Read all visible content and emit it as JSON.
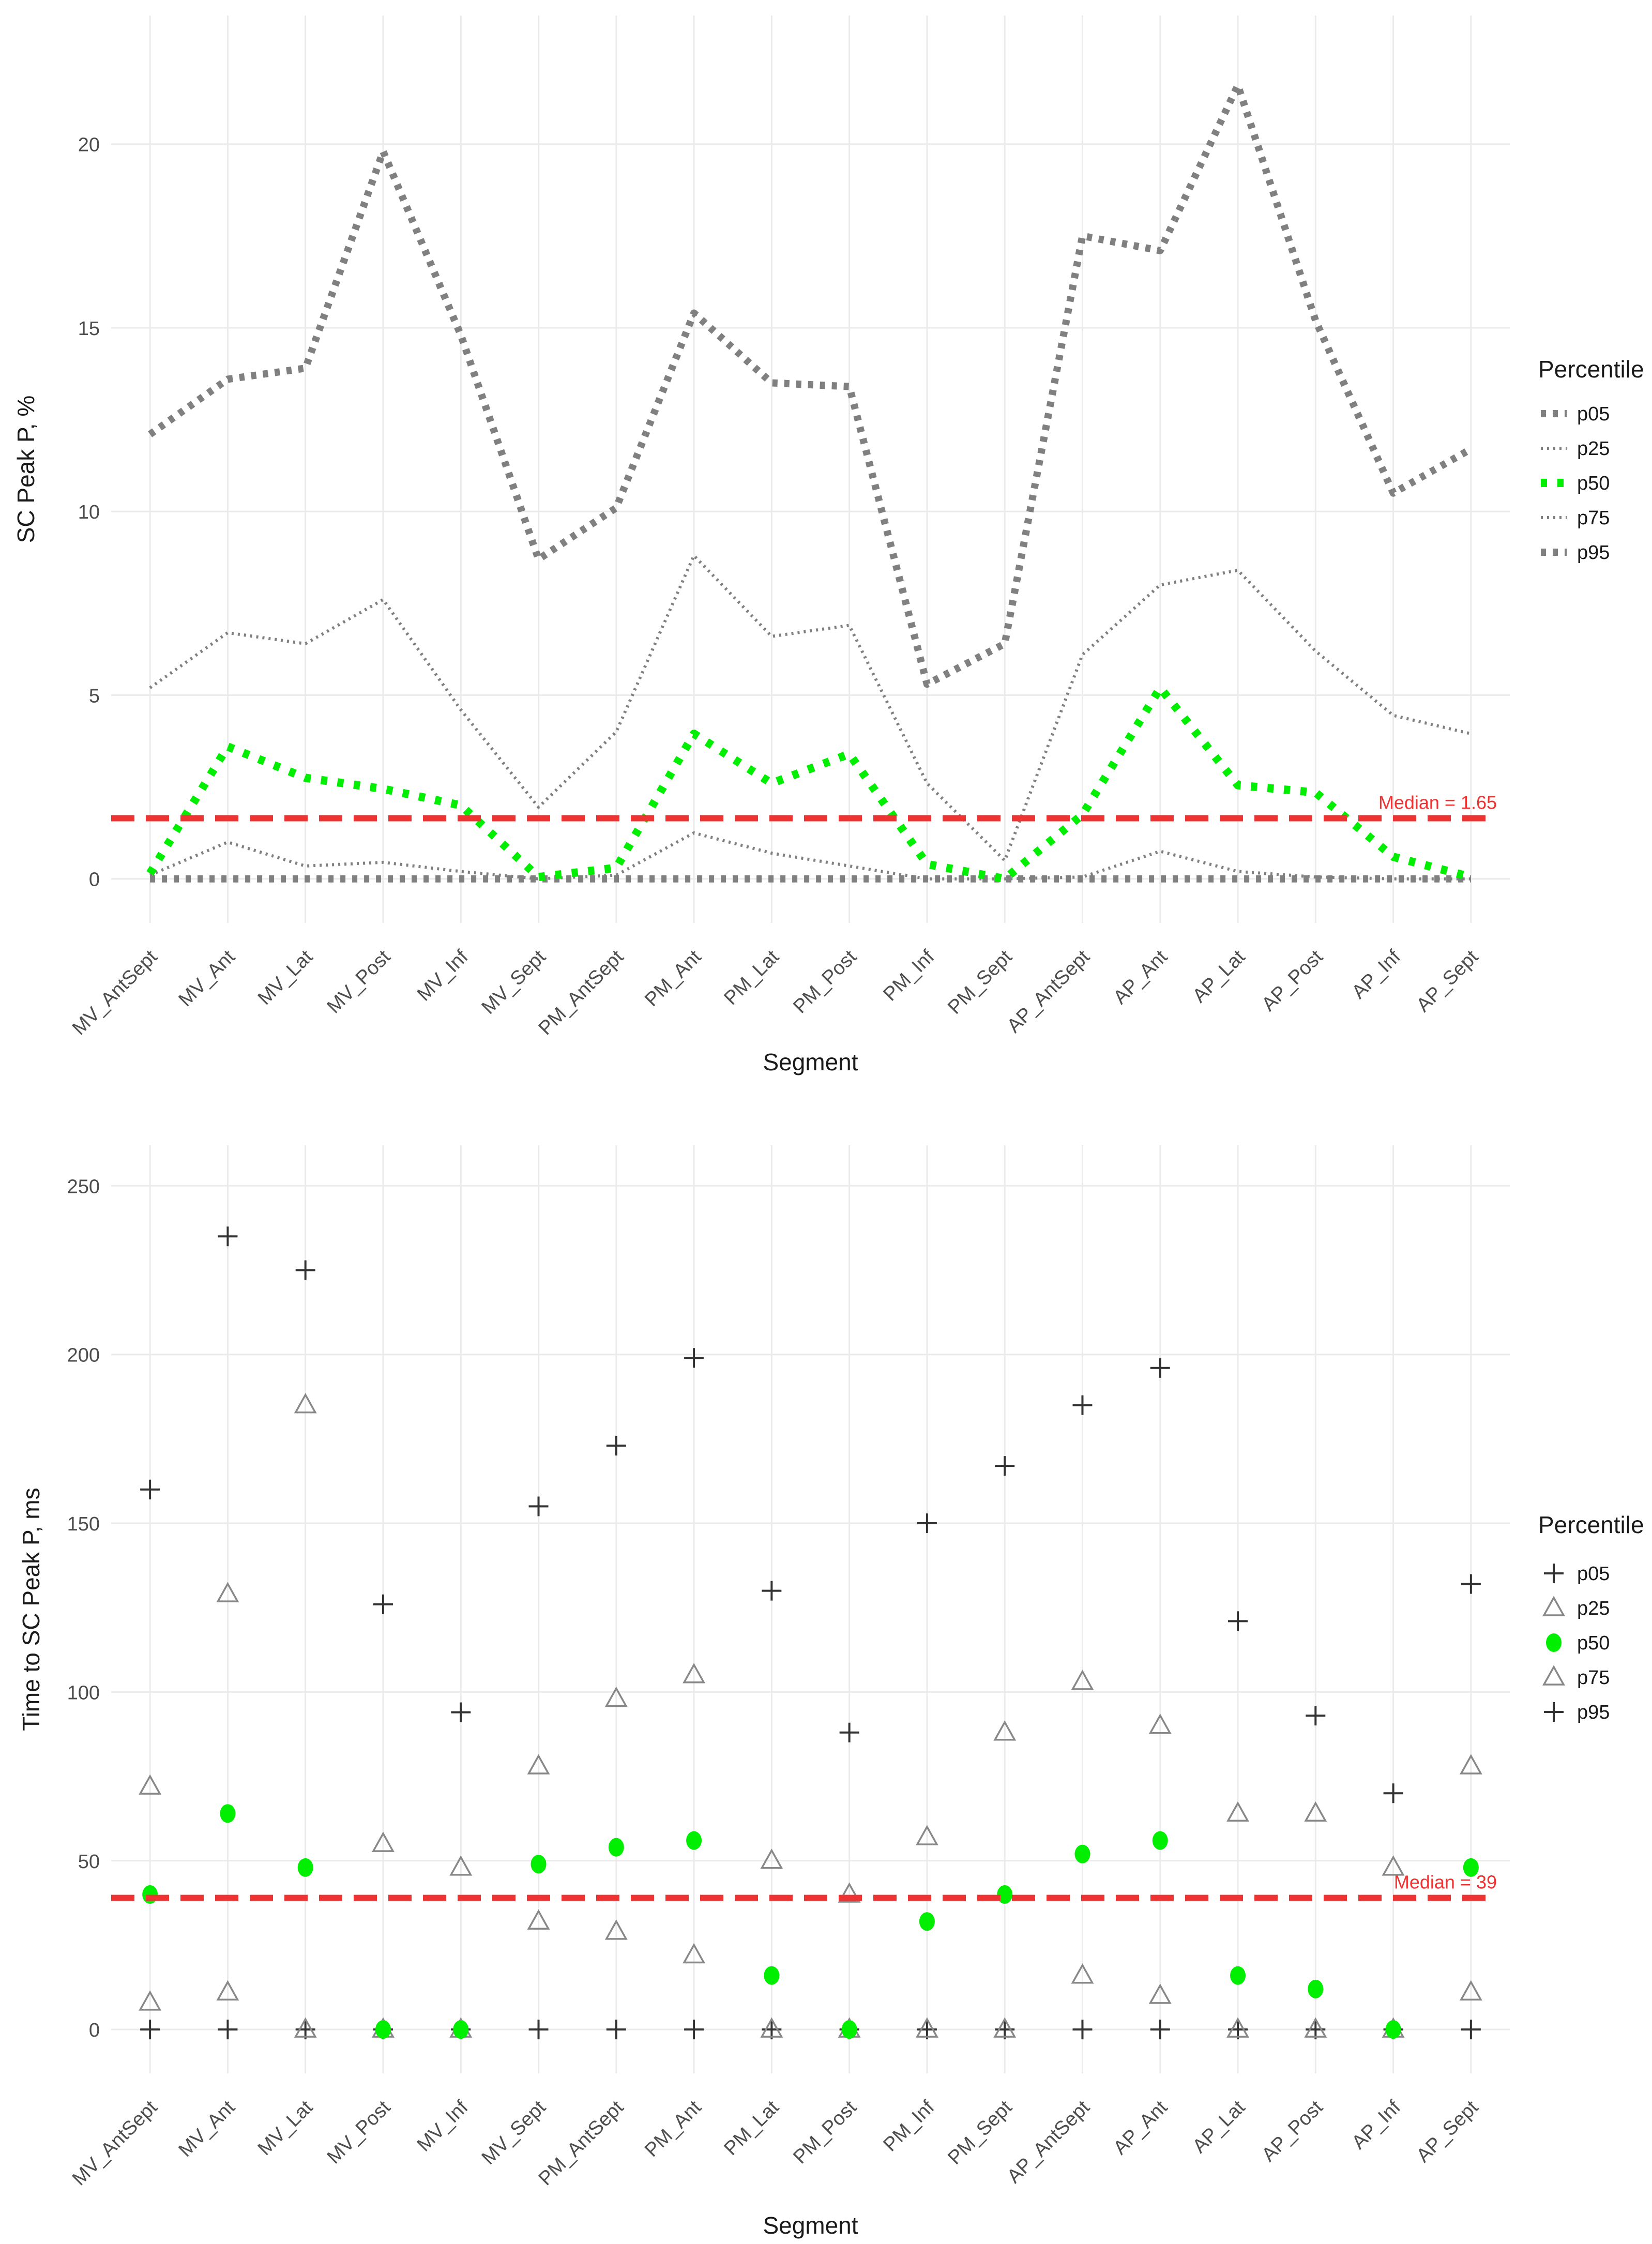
{
  "chart_data": [
    {
      "type": "line",
      "xlabel": "Segment",
      "ylabel": "SC Peak P, %",
      "ylim": [
        -1.2,
        23.5
      ],
      "yticks": [
        0,
        5,
        10,
        15,
        20
      ],
      "grid": true,
      "legend_title": "Percentile",
      "legend_position": "right",
      "categories": [
        "MV_AntSept",
        "MV_Ant",
        "MV_Lat",
        "MV_Post",
        "MV_Inf",
        "MV_Sept",
        "PM_AntSept",
        "PM_Ant",
        "PM_Lat",
        "PM_Post",
        "PM_Inf",
        "PM_Sept",
        "AP_AntSept",
        "AP_Ant",
        "AP_Lat",
        "AP_Post",
        "AP_Inf",
        "AP_Sept"
      ],
      "series": [
        {
          "name": "p05",
          "color": "#808080",
          "style": "dashed-thick",
          "values": [
            0,
            0,
            0,
            0,
            0,
            0,
            0,
            0,
            0,
            0,
            0,
            0,
            0,
            0,
            0,
            0,
            0,
            0
          ]
        },
        {
          "name": "p25",
          "color": "#808080",
          "style": "dotted-thin",
          "values": [
            0.1,
            1.0,
            0.35,
            0.45,
            0.2,
            0,
            0.1,
            1.25,
            0.7,
            0.35,
            0,
            0,
            0.05,
            0.75,
            0.2,
            0.05,
            0,
            0
          ]
        },
        {
          "name": "p50",
          "color": "#00ee00",
          "style": "dotted-thick",
          "values": [
            0.15,
            3.6,
            2.75,
            2.45,
            2.0,
            0.05,
            0.3,
            3.95,
            2.6,
            3.4,
            0.4,
            0,
            1.75,
            5.2,
            2.55,
            2.35,
            0.6,
            0.05
          ]
        },
        {
          "name": "p75",
          "color": "#808080",
          "style": "dotted-thin",
          "values": [
            5.2,
            6.7,
            6.4,
            7.6,
            4.6,
            1.95,
            4.0,
            8.8,
            6.6,
            6.9,
            2.6,
            0.5,
            6.1,
            8.0,
            8.4,
            6.2,
            4.45,
            3.95
          ]
        },
        {
          "name": "p95",
          "color": "#808080",
          "style": "dashed-thick",
          "values": [
            12.1,
            13.6,
            13.9,
            19.8,
            14.8,
            8.7,
            10.1,
            15.4,
            13.5,
            13.4,
            5.3,
            6.4,
            17.5,
            17.1,
            21.6,
            15.2,
            10.5,
            11.7
          ]
        }
      ],
      "reference_line": {
        "value": 1.65,
        "label": "Median = 1.65",
        "color": "#ee3333"
      }
    },
    {
      "type": "scatter",
      "xlabel": "Segment",
      "ylabel": "Time to SC Peak P, ms",
      "ylim": [
        -13,
        262
      ],
      "yticks": [
        0,
        50,
        100,
        150,
        200,
        250
      ],
      "grid": true,
      "legend_title": "Percentile",
      "legend_position": "right",
      "categories": [
        "MV_AntSept",
        "MV_Ant",
        "MV_Lat",
        "MV_Post",
        "MV_Inf",
        "MV_Sept",
        "PM_AntSept",
        "PM_Ant",
        "PM_Lat",
        "PM_Post",
        "PM_Inf",
        "PM_Sept",
        "AP_AntSept",
        "AP_Ant",
        "AP_Lat",
        "AP_Post",
        "AP_Inf",
        "AP_Sept"
      ],
      "series": [
        {
          "name": "p05",
          "marker": "plus",
          "color": "#333333",
          "values": [
            0,
            0,
            0,
            0,
            0,
            0,
            0,
            0,
            0,
            0,
            0,
            0,
            0,
            0,
            0,
            0,
            0,
            0
          ]
        },
        {
          "name": "p25",
          "marker": "triangle",
          "color": "#888888",
          "values": [
            8,
            11,
            0,
            0,
            0,
            32,
            29,
            22,
            0,
            0,
            0,
            0,
            16,
            10,
            0,
            0,
            0,
            11
          ]
        },
        {
          "name": "p50",
          "marker": "circle",
          "color": "#00ee00",
          "values": [
            40,
            64,
            48,
            0,
            0,
            49,
            54,
            56,
            16,
            0,
            32,
            40,
            52,
            56,
            16,
            12,
            0,
            48
          ]
        },
        {
          "name": "p75",
          "marker": "triangle",
          "color": "#888888",
          "values": [
            72,
            129,
            185,
            55,
            48,
            78,
            98,
            105,
            50,
            40,
            57,
            88,
            103,
            90,
            64,
            64,
            48,
            78
          ]
        },
        {
          "name": "p95",
          "marker": "plus",
          "color": "#333333",
          "values": [
            160,
            235,
            225,
            126,
            94,
            155,
            173,
            199,
            130,
            88,
            150,
            167,
            185,
            196,
            121,
            93,
            70,
            132
          ]
        }
      ],
      "reference_line": {
        "value": 39,
        "label": "Median = 39",
        "color": "#ee3333"
      }
    }
  ]
}
